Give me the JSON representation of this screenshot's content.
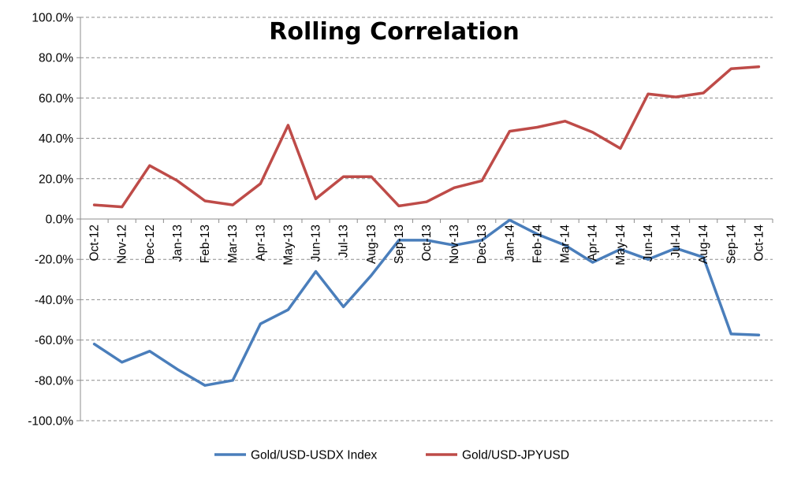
{
  "chart_data": {
    "type": "line",
    "title": "Rolling Correlation",
    "xlabel": "",
    "ylabel": "",
    "ylim": [
      -100,
      100
    ],
    "ytick_step": 20,
    "ytick_labels": [
      "100.0%",
      "80.0%",
      "60.0%",
      "40.0%",
      "20.0%",
      "0.0%",
      "-20.0%",
      "-40.0%",
      "-60.0%",
      "-80.0%",
      "-100.0%"
    ],
    "grid": true,
    "legend_position": "bottom",
    "categories": [
      "Oct-12",
      "Nov-12",
      "Dec-12",
      "Jan-13",
      "Feb-13",
      "Mar-13",
      "Apr-13",
      "May-13",
      "Jun-13",
      "Jul-13",
      "Aug-13",
      "Sep-13",
      "Oct-13",
      "Nov-13",
      "Dec-13",
      "Jan-14",
      "Feb-14",
      "Mar-14",
      "Apr-14",
      "May-14",
      "Jun-14",
      "Jul-14",
      "Aug-14",
      "Sep-14",
      "Oct-14"
    ],
    "series": [
      {
        "name": "Gold/USD-USDX Index",
        "color": "#4a7ebb",
        "values": [
          -62.0,
          -71.0,
          -65.5,
          -74.5,
          -82.5,
          -80.0,
          -52.0,
          -45.0,
          -26.0,
          -43.5,
          -28.0,
          -10.5,
          -10.5,
          -13.0,
          -10.5,
          -0.5,
          -7.5,
          -13.0,
          -21.5,
          -15.0,
          -20.0,
          -14.5,
          -19.0,
          -57.0,
          -57.5
        ]
      },
      {
        "name": "Gold/USD-JPYUSD",
        "color": "#be4b48",
        "values": [
          7.0,
          6.0,
          26.5,
          19.0,
          9.0,
          7.0,
          17.5,
          46.5,
          10.0,
          21.0,
          21.0,
          6.5,
          8.5,
          15.5,
          19.0,
          43.5,
          45.5,
          48.5,
          43.0,
          35.0,
          62.0,
          60.5,
          62.5,
          74.5,
          75.5
        ]
      }
    ]
  }
}
